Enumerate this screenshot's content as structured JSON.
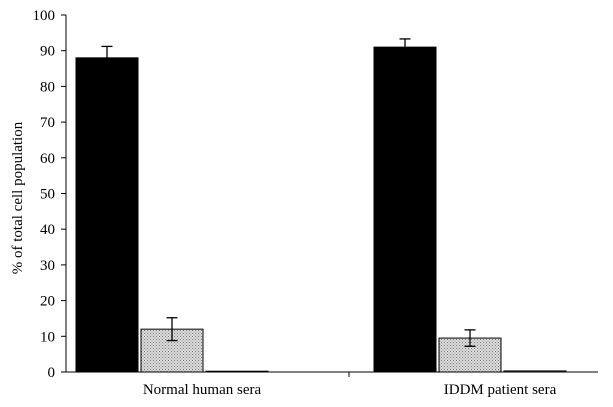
{
  "chart_data": {
    "type": "bar",
    "categories": [
      "Normal human sera",
      "IDDM patient sera"
    ],
    "series": [
      {
        "values": [
          88,
          91
        ],
        "errors": [
          3.2,
          2.3
        ],
        "fill": "solid-black"
      },
      {
        "values": [
          12,
          9.5
        ],
        "errors": [
          3.2,
          2.3
        ],
        "fill": "gray-stipple"
      },
      {
        "values": [
          0,
          0.3
        ],
        "errors": [
          null,
          null
        ],
        "fill": "white"
      }
    ],
    "ylabel": "% of total cell population",
    "ylim": [
      0,
      100
    ],
    "yticks": [
      0,
      10,
      20,
      30,
      40,
      50,
      60,
      70,
      80,
      90,
      100
    ],
    "ytick_labels": [
      "0",
      "10",
      "20",
      "30",
      "40",
      "50",
      "60",
      "70",
      "80",
      "90",
      "100"
    ],
    "grid": false,
    "legend": "none",
    "colors": {
      "series_1": "#000000",
      "series_2": "#c8c8c8",
      "series_3": "#ffffff",
      "axis": "#000000"
    }
  }
}
